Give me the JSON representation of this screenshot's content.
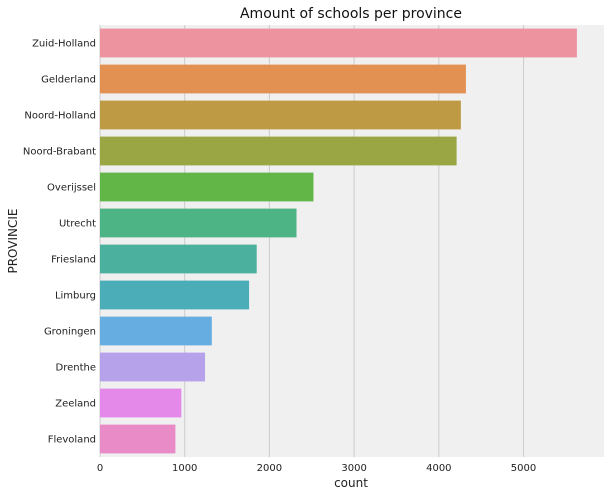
{
  "chart_data": {
    "type": "bar",
    "orientation": "horizontal",
    "title": "Amount of schools per province",
    "xlabel": "count",
    "ylabel": "PROVINCIE",
    "categories": [
      "Zuid-Holland",
      "Gelderland",
      "Noord-Holland",
      "Noord-Brabant",
      "Overijssel",
      "Utrecht",
      "Friesland",
      "Limburg",
      "Groningen",
      "Drenthe",
      "Zeeland",
      "Flevoland"
    ],
    "values": [
      5630,
      4320,
      4260,
      4210,
      2520,
      2320,
      1850,
      1760,
      1320,
      1240,
      960,
      890
    ],
    "colors": [
      "#ec939f",
      "#e39153",
      "#be9a45",
      "#9aa543",
      "#62b547",
      "#4db486",
      "#4bb09e",
      "#4aadb7",
      "#66aee2",
      "#b5a2ea",
      "#e488e9",
      "#e98bc6"
    ],
    "xlim": [
      0,
      5950
    ],
    "xticks": [
      0,
      1000,
      2000,
      3000,
      4000,
      5000
    ],
    "grid": true,
    "background": "#f0f0f0",
    "gridColor": "#cccccc"
  }
}
